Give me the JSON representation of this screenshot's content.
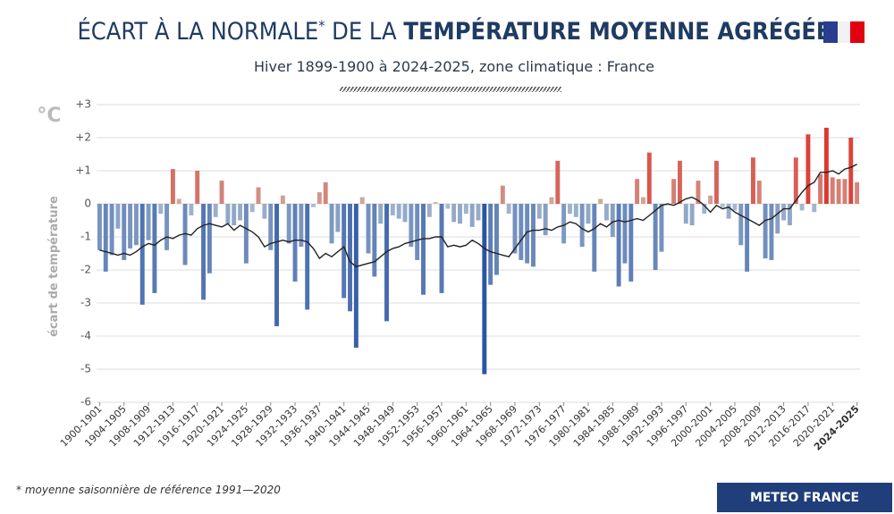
{
  "chart_data": {
    "type": "bar",
    "title_parts": [
      "ÉCART À LA NORMALE",
      "*",
      " DE LA ",
      "TEMPÉRATURE MOYENNE AGRÉGÉE"
    ],
    "subtitle": "Hiver 1899-1900 à 2024-2025, zone climatique : France",
    "unit": "°C",
    "y_label": "écart de température",
    "footnote": "* moyenne saisonnière de référence 1991—2020",
    "source": "METEO FRANCE",
    "categories": [
      "1900-1901",
      null,
      null,
      null,
      "1904-1905",
      null,
      null,
      null,
      "1908-1909",
      null,
      null,
      null,
      "1912-1913",
      null,
      null,
      null,
      "1916-1917",
      null,
      null,
      null,
      "1920-1921",
      null,
      null,
      null,
      "1924-1925",
      null,
      null,
      null,
      "1928-1929",
      null,
      null,
      null,
      "1932-1933",
      null,
      null,
      null,
      "1936-1937",
      null,
      null,
      null,
      "1940-1941",
      null,
      null,
      null,
      "1944-1945",
      null,
      null,
      null,
      "1948-1949",
      null,
      null,
      null,
      "1952-1953",
      null,
      null,
      null,
      "1956-1957",
      null,
      null,
      null,
      "1960-1961",
      null,
      null,
      null,
      "1964-1965",
      null,
      null,
      null,
      "1968-1969",
      null,
      null,
      null,
      "1972-1973",
      null,
      null,
      null,
      "1976-1977",
      null,
      null,
      null,
      "1980-1981",
      null,
      null,
      null,
      "1984-1985",
      null,
      null,
      null,
      "1988-1989",
      null,
      null,
      null,
      "1992-1993",
      null,
      null,
      null,
      "1996-1997",
      null,
      null,
      null,
      "2000-2001",
      null,
      null,
      null,
      "2004-2005",
      null,
      null,
      null,
      "2008-2009",
      null,
      null,
      null,
      "2012-2013",
      null,
      null,
      null,
      "2016-2017",
      null,
      null,
      null,
      "2020-2021",
      null,
      null,
      null,
      "2024-2025"
    ],
    "values": [
      -1.4,
      -2.05,
      -1.55,
      -0.75,
      -1.7,
      -1.35,
      -1.25,
      -3.05,
      -1.1,
      -2.7,
      -0.3,
      -1.4,
      1.05,
      0.15,
      -1.85,
      -0.35,
      1.0,
      -2.9,
      -2.1,
      -0.4,
      0.7,
      -0.6,
      -0.65,
      -0.5,
      -1.8,
      -0.25,
      0.5,
      -0.45,
      -1.4,
      -3.7,
      0.25,
      -1.2,
      -2.35,
      -1.3,
      -3.2,
      -0.1,
      0.35,
      0.65,
      -1.2,
      -0.85,
      -2.85,
      -3.25,
      -4.35,
      0.2,
      -1.5,
      -2.2,
      -0.6,
      -3.55,
      -0.35,
      -0.45,
      -0.55,
      -1.3,
      -1.7,
      -2.75,
      -0.4,
      0.05,
      -2.7,
      -0.15,
      -0.55,
      -0.6,
      -0.3,
      -0.7,
      -0.5,
      -5.15,
      -2.45,
      -2.15,
      0.55,
      -0.3,
      -1.5,
      -1.7,
      -1.8,
      -1.9,
      -0.45,
      -0.95,
      0.2,
      1.3,
      -1.2,
      -0.3,
      -0.4,
      -1.3,
      -0.6,
      -2.05,
      0.15,
      -0.5,
      -1.0,
      -2.5,
      -1.8,
      -2.35,
      0.75,
      0.2,
      1.55,
      -2.0,
      -1.45,
      -0.05,
      0.75,
      1.3,
      -0.6,
      -0.65,
      0.7,
      -0.3,
      0.25,
      1.3,
      -0.1,
      -0.45,
      -0.2,
      -1.25,
      -2.05,
      1.4,
      0.7,
      -1.65,
      -1.7,
      -0.9,
      -0.5,
      -0.65,
      1.4,
      -0.2,
      2.1,
      -0.25,
      0.9,
      2.3,
      0.8,
      0.75,
      0.75,
      2.0,
      0.65
    ],
    "trend": [
      -1.4,
      -1.45,
      -1.5,
      -1.55,
      -1.5,
      -1.55,
      -1.45,
      -1.3,
      -1.2,
      -1.25,
      -1.1,
      -1.0,
      -1.05,
      -0.95,
      -0.9,
      -0.95,
      -0.75,
      -0.65,
      -0.6,
      -0.65,
      -0.7,
      -0.6,
      -0.8,
      -0.65,
      -0.75,
      -0.85,
      -1.0,
      -1.3,
      -1.2,
      -1.15,
      -1.1,
      -1.15,
      -1.1,
      -1.1,
      -1.15,
      -1.35,
      -1.65,
      -1.5,
      -1.6,
      -1.45,
      -1.3,
      -1.75,
      -1.9,
      -1.85,
      -1.8,
      -1.75,
      -1.6,
      -1.45,
      -1.35,
      -1.3,
      -1.2,
      -1.15,
      -1.1,
      -1.05,
      -1.05,
      -1.0,
      -1.0,
      -1.3,
      -1.25,
      -1.3,
      -1.25,
      -1.1,
      -1.2,
      -1.35,
      -1.45,
      -1.5,
      -1.55,
      -1.6,
      -1.35,
      -1.1,
      -0.85,
      -0.8,
      -0.8,
      -0.75,
      -0.8,
      -0.7,
      -0.65,
      -0.55,
      -0.6,
      -0.75,
      -0.85,
      -0.75,
      -0.6,
      -0.7,
      -0.55,
      -0.5,
      -0.55,
      -0.5,
      -0.45,
      -0.5,
      -0.35,
      -0.2,
      -0.05,
      0.0,
      -0.05,
      0.05,
      0.15,
      0.2,
      0.1,
      -0.05,
      -0.25,
      -0.05,
      -0.15,
      -0.1,
      -0.25,
      -0.35,
      -0.45,
      -0.55,
      -0.65,
      -0.5,
      -0.45,
      -0.3,
      -0.15,
      -0.15,
      0.1,
      0.35,
      0.55,
      0.65,
      0.95,
      0.95,
      1.0,
      0.9,
      1.05,
      1.1,
      1.2
    ],
    "trend_color": "#222222",
    "colors": {
      "cold": "#2a55a5",
      "cold_light": "#b9c8d5",
      "warm": "#dd2c24",
      "warm_light": "#cdbcae"
    },
    "ylim": [
      -6,
      3
    ],
    "yticks": [
      {
        "value": 3,
        "label": "+3"
      },
      {
        "value": 2,
        "label": "+2"
      },
      {
        "value": 1,
        "label": "+1"
      },
      0,
      -1,
      -2,
      -3,
      -4,
      -5,
      -6
    ],
    "grid": true
  }
}
